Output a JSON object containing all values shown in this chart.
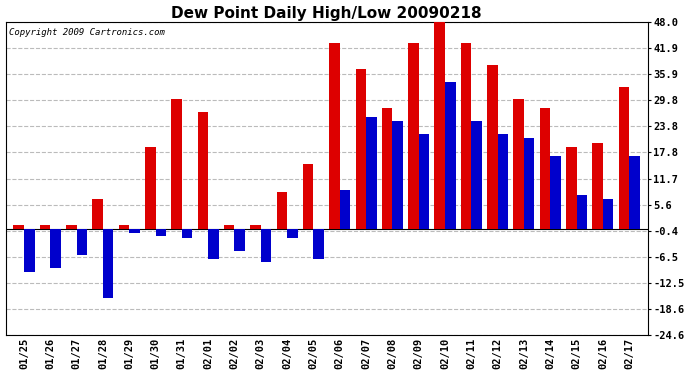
{
  "title": "Dew Point Daily High/Low 20090218",
  "copyright": "Copyright 2009 Cartronics.com",
  "dates": [
    "01/25",
    "01/26",
    "01/27",
    "01/28",
    "01/29",
    "01/30",
    "01/31",
    "02/01",
    "02/02",
    "02/03",
    "02/04",
    "02/05",
    "02/06",
    "02/07",
    "02/08",
    "02/09",
    "02/10",
    "02/11",
    "02/12",
    "02/13",
    "02/14",
    "02/15",
    "02/16",
    "02/17"
  ],
  "high": [
    1.0,
    1.0,
    1.0,
    7.0,
    1.0,
    19.0,
    30.0,
    27.0,
    1.0,
    1.0,
    8.5,
    15.0,
    43.0,
    37.0,
    28.0,
    43.0,
    48.0,
    43.0,
    38.0,
    30.0,
    28.0,
    19.0,
    20.0,
    33.0
  ],
  "low": [
    -10.0,
    -9.0,
    -6.0,
    -16.0,
    -1.0,
    -1.5,
    -2.0,
    -7.0,
    -5.0,
    -7.5,
    -2.0,
    -7.0,
    9.0,
    26.0,
    25.0,
    22.0,
    34.0,
    25.0,
    22.0,
    21.0,
    17.0,
    8.0,
    7.0,
    17.0
  ],
  "high_color": "#dd0000",
  "low_color": "#0000cc",
  "ylim": [
    -24.6,
    48.0
  ],
  "yticks": [
    48.0,
    41.9,
    35.9,
    29.8,
    23.8,
    17.8,
    11.7,
    5.6,
    -0.4,
    -6.5,
    -12.5,
    -18.6,
    -24.6
  ],
  "bg_color": "#ffffff",
  "grid_color": "#bbbbbb",
  "bar_width": 0.4,
  "title_fontsize": 11,
  "tick_fontsize": 7.5,
  "copyright_fontsize": 6.5,
  "figwidth": 6.9,
  "figheight": 3.75,
  "dpi": 100
}
